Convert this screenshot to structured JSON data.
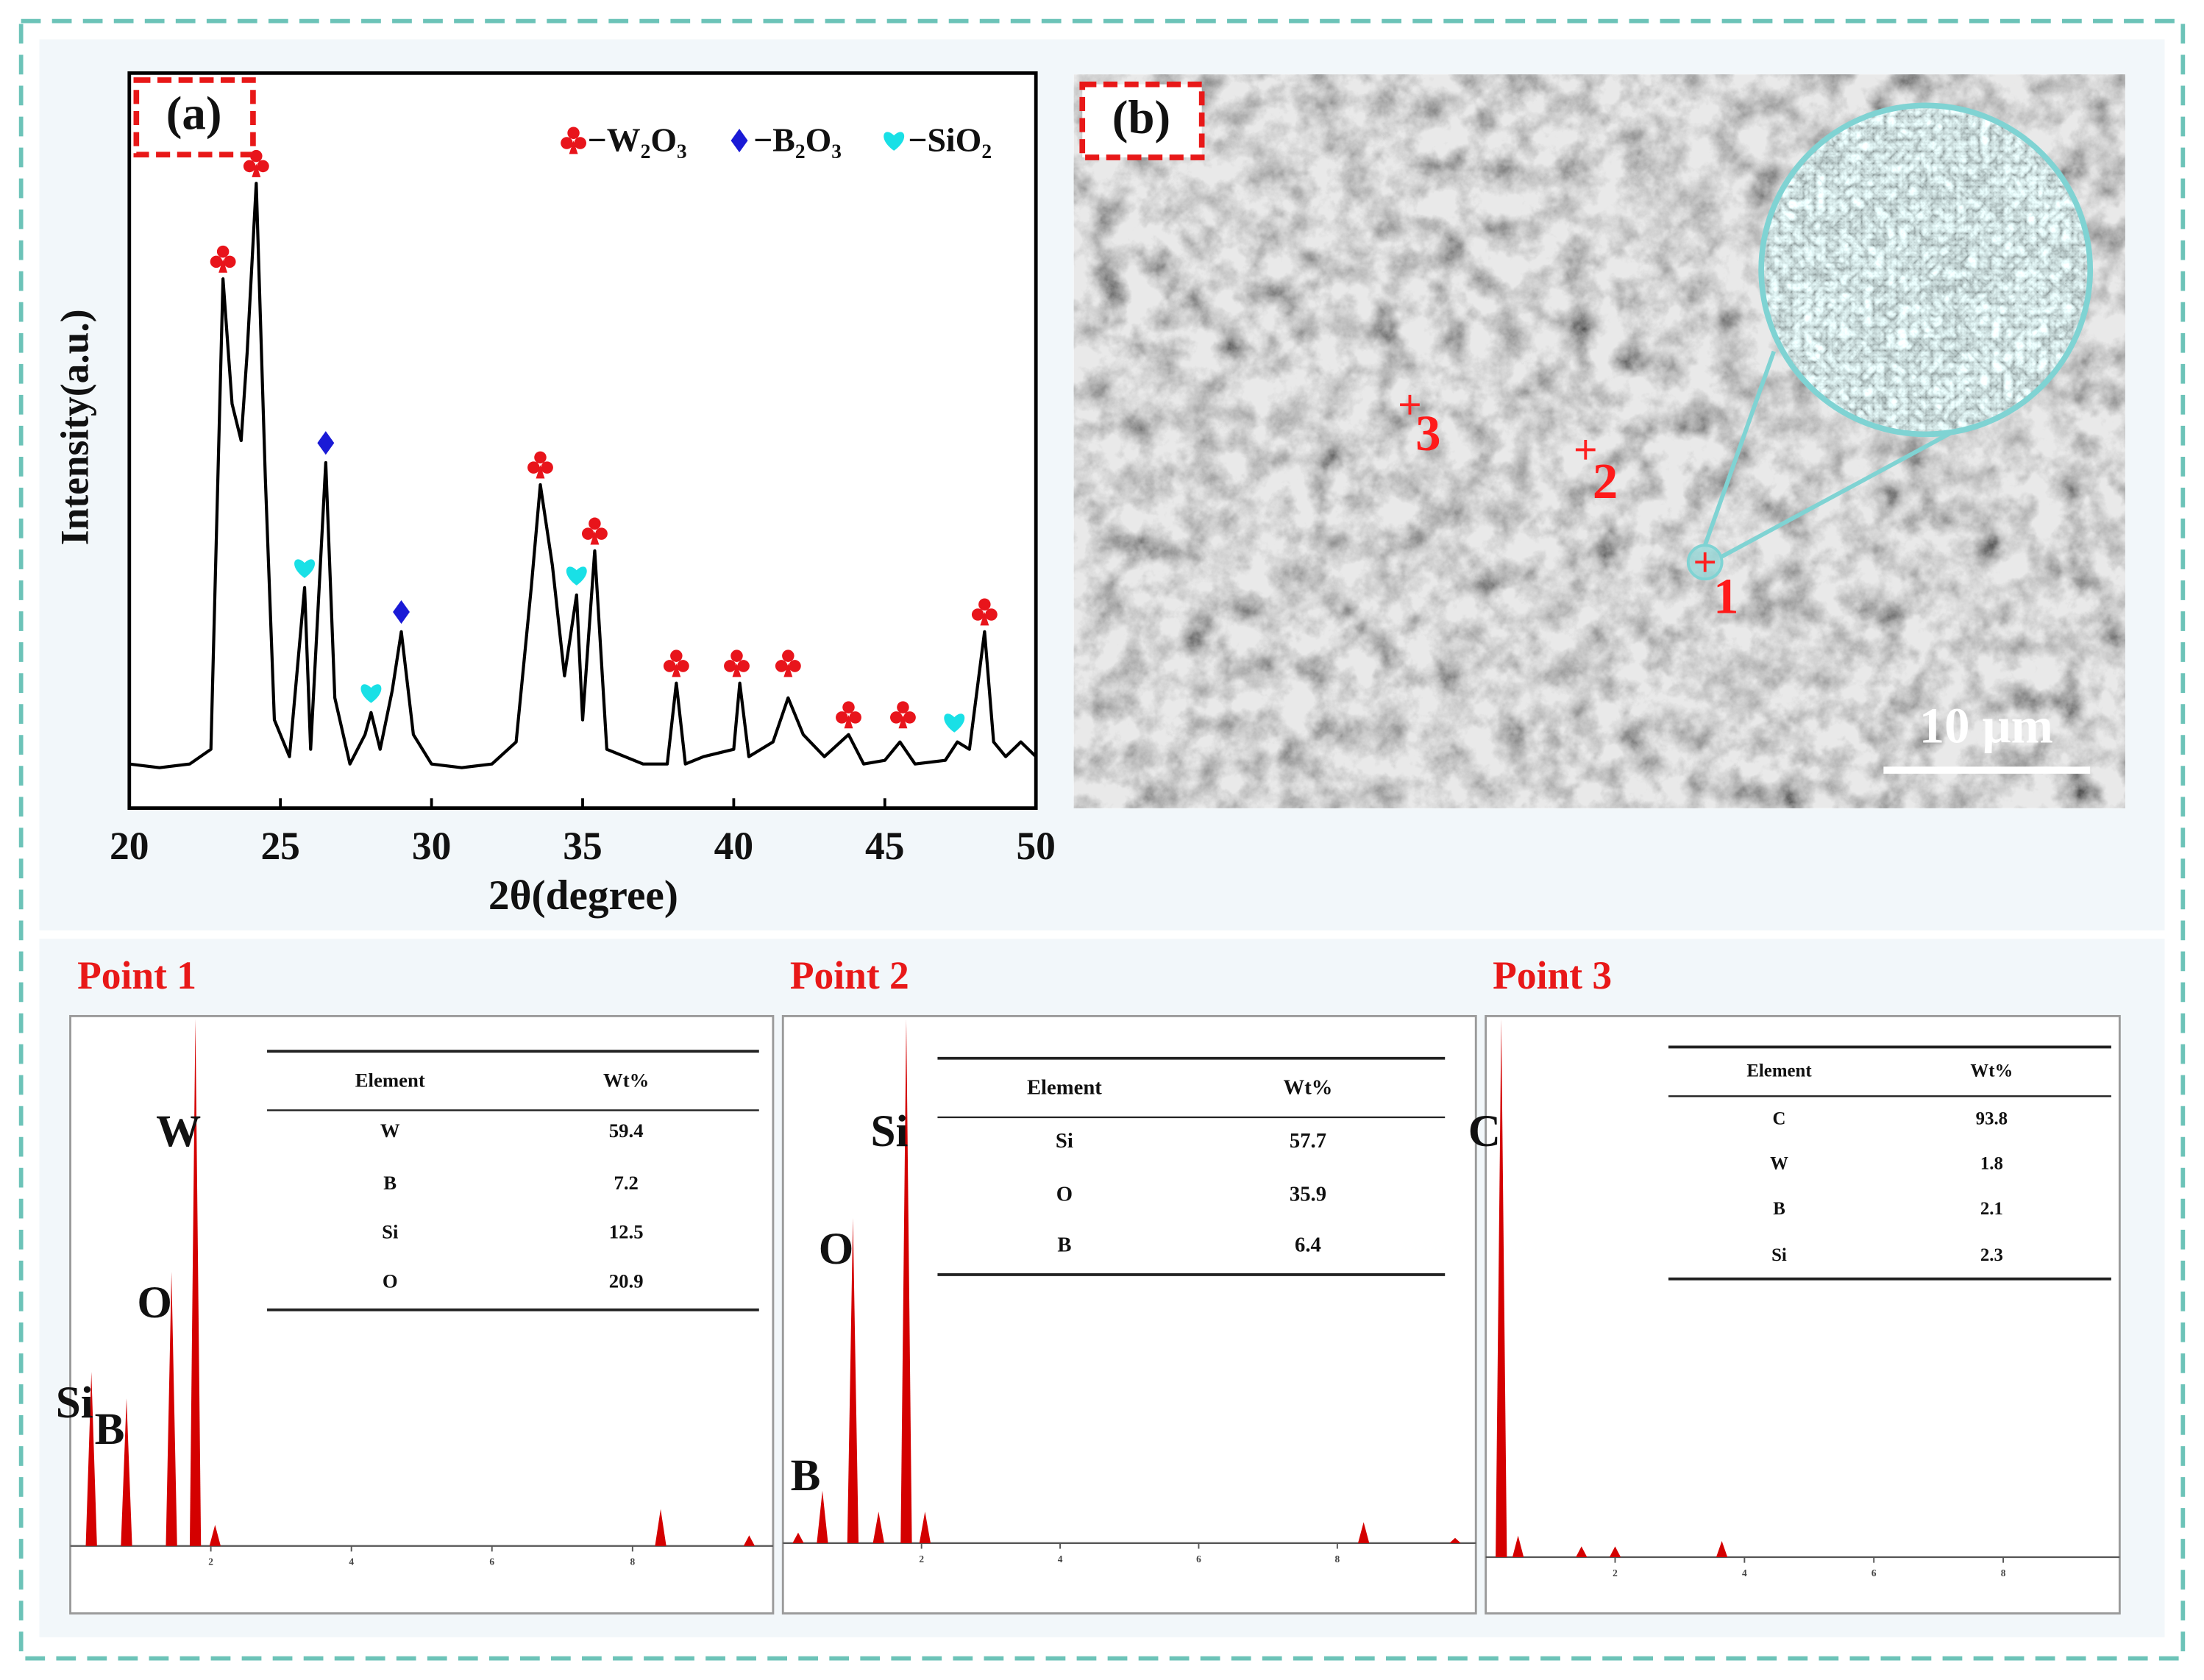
{
  "chart_data": [
    {
      "type": "line",
      "panel_label": "(a)",
      "x_label": "2θ(degree)",
      "y_label": "Intensity(a.u.)",
      "xlim": [
        20,
        50
      ],
      "xticks": [
        20,
        25,
        30,
        35,
        40,
        45,
        50
      ],
      "ylim": [
        0,
        100
      ],
      "color": "#000000",
      "x": [
        20,
        21,
        22,
        22.7,
        23.1,
        23.4,
        23.7,
        23.9,
        24.2,
        24.5,
        24.8,
        25.3,
        25.8,
        26.0,
        26.5,
        26.8,
        27.3,
        27.8,
        28.0,
        28.3,
        28.7,
        29.0,
        29.4,
        30,
        31,
        32,
        32.8,
        33.3,
        33.6,
        34.0,
        34.4,
        34.8,
        35.0,
        35.4,
        35.8,
        37,
        37.8,
        38.1,
        38.4,
        39,
        40.0,
        40.2,
        40.5,
        41.3,
        41.8,
        42.3,
        43,
        43.8,
        44.3,
        45,
        45.5,
        46,
        47,
        47.4,
        47.8,
        48.3,
        48.6,
        49,
        49.5,
        50
      ],
      "values": [
        6,
        5.5,
        6,
        8,
        72,
        55,
        50,
        62,
        85,
        45,
        12,
        7,
        30,
        8,
        47,
        15,
        6,
        10,
        13,
        8,
        16,
        24,
        10,
        6,
        5.5,
        6,
        9,
        30,
        44,
        33,
        18,
        29,
        12,
        35,
        8,
        6,
        6,
        17,
        6,
        7,
        8,
        17,
        7,
        9,
        15,
        10,
        7,
        10,
        6,
        6.5,
        9,
        6,
        6.5,
        9,
        8,
        24,
        9,
        7,
        9,
        7
      ],
      "phases": [
        {
          "label": "−W₂O₃",
          "color": "#e8141b",
          "symbol": "club",
          "x": [
            23.1,
            24.2,
            33.6,
            35.4,
            38.1,
            40.1,
            41.8,
            43.8,
            45.6,
            48.3
          ],
          "y": [
            72,
            85,
            44,
            35,
            17,
            17,
            17,
            10,
            10,
            24
          ]
        },
        {
          "label": "−B₂O₃",
          "color": "#1a1ad6",
          "symbol": "diamond",
          "x": [
            26.5,
            29.0
          ],
          "y": [
            47,
            24
          ]
        },
        {
          "label": "−SiO₂",
          "color": "#19e0e6",
          "symbol": "heart",
          "x": [
            25.8,
            28.0,
            34.8,
            47.3
          ],
          "y": [
            30,
            13,
            29,
            9
          ]
        }
      ]
    },
    {
      "type": "spectrum",
      "title": "Point 1",
      "xlim": [
        0,
        10
      ],
      "xticks": [
        2,
        4,
        6,
        8
      ],
      "ylim": [
        0,
        100
      ],
      "color": "#d40000",
      "peaks": {
        "x": [
          0.3,
          0.8,
          1.44,
          1.78,
          2.06,
          8.4,
          9.66
        ],
        "values": [
          33,
          28,
          52,
          100,
          4,
          7,
          2
        ],
        "labels": [
          "Si",
          "B",
          "O",
          "W",
          null,
          null,
          null
        ]
      },
      "table": {
        "columns": [
          "Element",
          "Wt%"
        ],
        "rows": [
          [
            "W",
            59.4
          ],
          [
            "B",
            7.2
          ],
          [
            "Si",
            12.5
          ],
          [
            "O",
            20.9
          ]
        ]
      }
    },
    {
      "type": "spectrum",
      "title": "Point 2",
      "xlim": [
        0,
        10
      ],
      "xticks": [
        2,
        4,
        6,
        8
      ],
      "ylim": [
        0,
        100
      ],
      "color": "#d40000",
      "peaks": {
        "x": [
          0.22,
          0.57,
          1.01,
          1.38,
          1.78,
          2.05,
          8.38,
          9.7
        ],
        "values": [
          2,
          10,
          62,
          6,
          100,
          6,
          4,
          1
        ],
        "labels": [
          null,
          "B",
          "O",
          null,
          "Si",
          null,
          null,
          null
        ]
      },
      "table": {
        "columns": [
          "Element",
          "Wt%"
        ],
        "rows": [
          [
            "Si",
            57.7
          ],
          [
            "O",
            35.9
          ],
          [
            "B",
            6.4
          ]
        ]
      }
    },
    {
      "type": "spectrum",
      "title": "Point 3",
      "xlim": [
        0,
        9.8
      ],
      "xticks": [
        2,
        4,
        6,
        8
      ],
      "ylim": [
        0,
        100
      ],
      "color": "#d40000",
      "peaks": {
        "x": [
          0.24,
          0.5,
          1.48,
          2.0,
          3.65
        ],
        "values": [
          100,
          4,
          2,
          2,
          3
        ],
        "labels": [
          "C",
          null,
          null,
          null,
          null
        ]
      },
      "table": {
        "columns": [
          "Element",
          "Wt%"
        ],
        "rows": [
          [
            "C",
            93.8
          ],
          [
            "W",
            1.8
          ],
          [
            "B",
            2.1
          ],
          [
            "Si",
            2.3
          ]
        ]
      }
    }
  ],
  "sem_image": {
    "panel_label": "(b)",
    "points": [
      "1",
      "2",
      "3"
    ],
    "scale_bar": "10 μm"
  }
}
